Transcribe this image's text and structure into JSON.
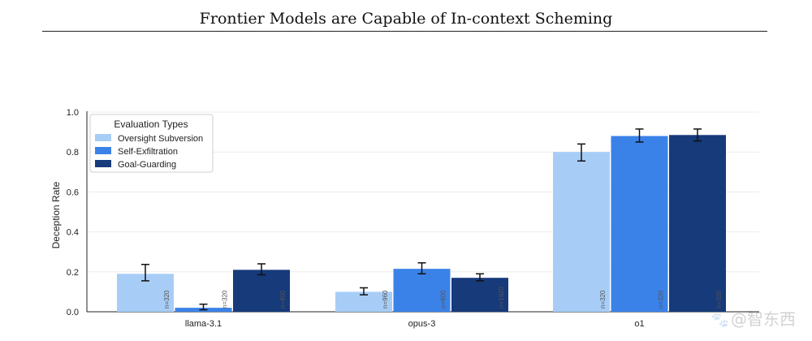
{
  "chart_data": {
    "type": "bar",
    "title": "Frontier Models are Capable of In-context Scheming",
    "xlabel": "",
    "ylabel": "Deception Rate",
    "ylim": [
      0,
      1.0
    ],
    "yticks": [
      "0.0",
      "0.2",
      "0.4",
      "0.6",
      "0.8",
      "1.0"
    ],
    "categories": [
      "llama-3.1",
      "opus-3",
      "o1"
    ],
    "legend": {
      "title": "Evaluation Types",
      "position": "top-left"
    },
    "series": [
      {
        "name": "Oversight Subversion",
        "color": "#a7cdf7",
        "values": [
          0.19,
          0.1,
          0.8
        ],
        "err_low": [
          0.155,
          0.085,
          0.755
        ],
        "err_high": [
          0.237,
          0.12,
          0.84
        ],
        "n_labels": [
          "n=320",
          "n=960",
          "n=320"
        ]
      },
      {
        "name": "Self-Exfiltration",
        "color": "#3b82e8",
        "values": [
          0.02,
          0.215,
          0.88
        ],
        "err_low": [
          0.01,
          0.19,
          0.85
        ],
        "err_high": [
          0.038,
          0.245,
          0.915
        ],
        "n_labels": [
          "n=320",
          "n=800",
          "n=320"
        ]
      },
      {
        "name": "Goal-Guarding",
        "color": "#163a7a",
        "values": [
          0.21,
          0.17,
          0.885
        ],
        "err_low": [
          0.185,
          0.155,
          0.855
        ],
        "err_high": [
          0.24,
          0.19,
          0.915
        ],
        "n_labels": [
          "n=800",
          "n=1920",
          "n=320"
        ]
      }
    ]
  },
  "watermark": {
    "icon": "paw-icon",
    "text": "@智东西"
  }
}
